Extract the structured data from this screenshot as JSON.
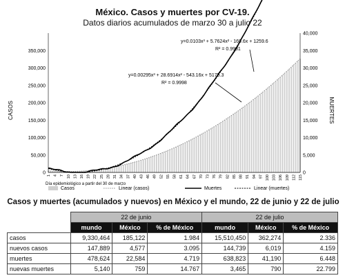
{
  "header": {
    "title": "México. Casos y muertes por CV-19.",
    "subtitle": "Datos diarios acumulados de marzo 30 a julio 22"
  },
  "chart_data": {
    "type": "bar",
    "title": "México. Casos y muertes por CV-19.",
    "subtitle": "Datos diarios acumulados de marzo 30 a julio 22",
    "ylabel_left": "CASOS",
    "ylabel_right": "MUERTES",
    "xlabel": "Día epidemiológico a partir del 30 de marzo",
    "ylim_left": [
      0,
      400000
    ],
    "ylim_right": [
      0,
      40000
    ],
    "yticks_left": [
      "0",
      "50,000",
      "100,000",
      "150,000",
      "200,000",
      "250,000",
      "300,000",
      "350,000"
    ],
    "yticks_right": [
      "0",
      "5,000",
      "10,000",
      "15,000",
      "20,000",
      "25,000",
      "30,000",
      "35,000",
      "40,000"
    ],
    "xticks": [
      "1",
      "4",
      "7",
      "10",
      "13",
      "16",
      "19",
      "22",
      "25",
      "28",
      "31",
      "34",
      "37",
      "40",
      "43",
      "46",
      "49",
      "52",
      "55",
      "58",
      "61",
      "64",
      "67",
      "70",
      "73",
      "76",
      "79",
      "82",
      "85",
      "88",
      "91",
      "94",
      "97",
      "100",
      "103",
      "106",
      "109",
      "112",
      "115"
    ],
    "x_range": [
      1,
      115
    ],
    "series": [
      {
        "name": "Casos",
        "kind": "bars",
        "color": "#cfcfcf"
      },
      {
        "name": "Linear (casos)",
        "kind": "trend",
        "color": "#888888"
      },
      {
        "name": "Muertes",
        "kind": "line",
        "color": "#000000"
      },
      {
        "name": "Linear (muertes)",
        "kind": "trend",
        "color": "#000000"
      }
    ],
    "fits": {
      "casos": {
        "a": 0.00295,
        "b": 28.6914,
        "c": -543.16,
        "d": 5175.3
      },
      "muertes": {
        "a": 0.0103,
        "b": 5.7624,
        "c": -169.6,
        "d": 1259.6
      }
    },
    "annotations": [
      {
        "text": "y=0.0103x³ + 5.7624x² - 169.6x + 1259.6",
        "text2": "R² = 0.9981"
      },
      {
        "text": "y=0.00295x³ + 28.6914x² - 543.16x + 5175.3",
        "text2": "R² = 0.9998"
      }
    ],
    "legend": [
      "Casos",
      "Linear (casos)",
      "Muertes",
      "Linear (muertes)"
    ],
    "legend_position": "bottom"
  },
  "table": {
    "title": "Casos y muertes (acumulados y nuevos) en México y el mundo, 22 de junio y 22 de julio",
    "groups": [
      "22 de junio",
      "22 de julio"
    ],
    "headers": [
      "mundo",
      "México",
      "% de México",
      "mundo",
      "México",
      "% de México"
    ],
    "rows": [
      {
        "label": "casos",
        "values": [
          "9,330,464",
          "185,122",
          "1.984",
          "15,510,450",
          "362,274",
          "2.336"
        ]
      },
      {
        "label": "nuevos casos",
        "values": [
          "147,889",
          "4,577",
          "3.095",
          "144,739",
          "6,019",
          "4.159"
        ]
      },
      {
        "label": "muertes",
        "values": [
          "478,624",
          "22,584",
          "4.719",
          "638,823",
          "41,190",
          "6.448"
        ]
      },
      {
        "label": "nuevas muertes",
        "values": [
          "5,140",
          "759",
          "14.767",
          "3,465",
          "790",
          "22.799"
        ]
      }
    ]
  }
}
